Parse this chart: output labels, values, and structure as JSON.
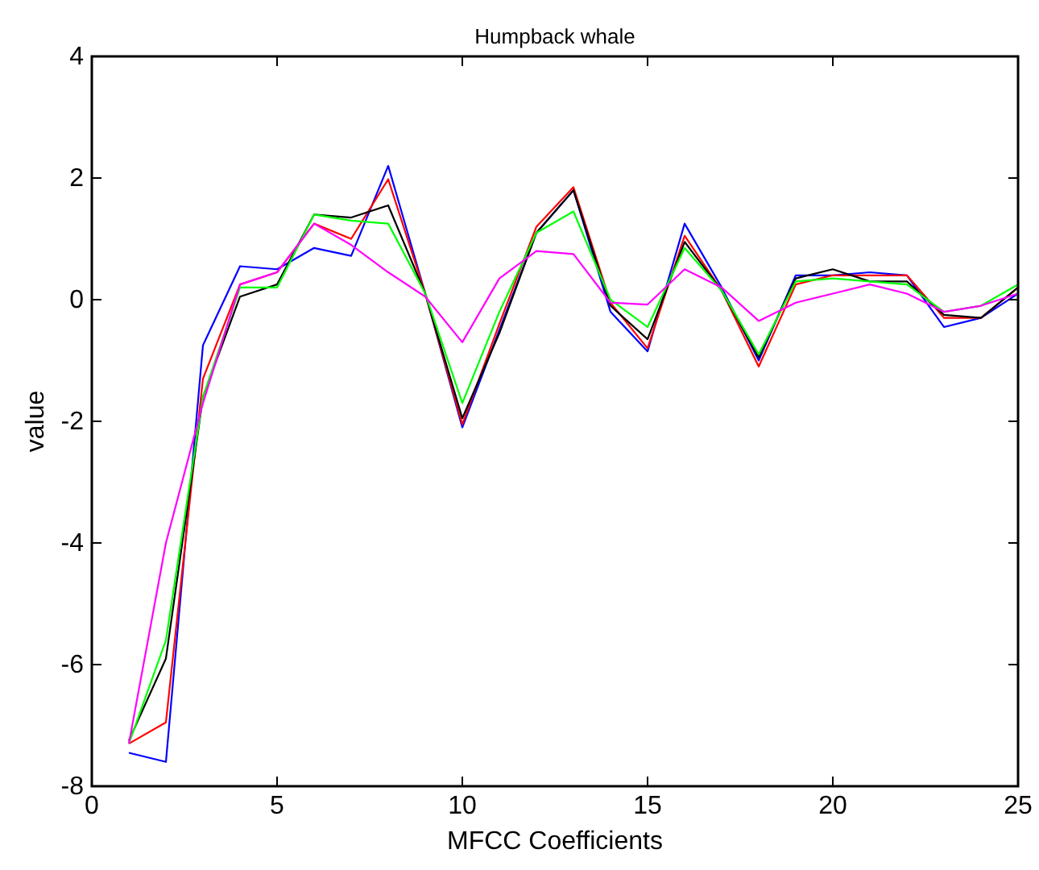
{
  "chart_data": {
    "type": "line",
    "title": "Humpback whale",
    "xlabel": "MFCC Coefficients",
    "ylabel": "value",
    "x": [
      1,
      2,
      3,
      4,
      5,
      6,
      7,
      8,
      9,
      10,
      11,
      12,
      13,
      14,
      15,
      16,
      17,
      18,
      19,
      20,
      21,
      22,
      23,
      24,
      25
    ],
    "xlim": [
      0,
      25
    ],
    "xticks": [
      0,
      5,
      10,
      15,
      20,
      25
    ],
    "ylim": [
      -8,
      4
    ],
    "yticks": [
      -8,
      -6,
      -4,
      -2,
      0,
      2,
      4
    ],
    "grid": false,
    "marker": "none",
    "line_style": "solid",
    "series": [
      {
        "color": "#0000ff",
        "values": [
          -7.45,
          -7.6,
          -0.75,
          0.55,
          0.5,
          0.85,
          0.72,
          2.2,
          0.1,
          -2.1,
          -0.5,
          1.1,
          1.8,
          -0.2,
          -0.85,
          1.25,
          0.2,
          -1.0,
          0.4,
          0.4,
          0.45,
          0.4,
          -0.45,
          -0.3,
          0.1
        ]
      },
      {
        "color": "#ff0000",
        "values": [
          -7.3,
          -6.95,
          -1.3,
          0.25,
          0.45,
          1.25,
          1.0,
          1.98,
          0.1,
          -2.05,
          -0.4,
          1.2,
          1.85,
          -0.05,
          -0.8,
          1.05,
          0.15,
          -1.1,
          0.25,
          0.4,
          0.4,
          0.4,
          -0.3,
          -0.3,
          0.2
        ]
      },
      {
        "color": "#000000",
        "values": [
          -7.25,
          -5.9,
          -1.6,
          0.05,
          0.25,
          1.4,
          1.35,
          1.55,
          0.1,
          -1.95,
          -0.55,
          1.1,
          1.8,
          -0.1,
          -0.65,
          0.95,
          0.15,
          -0.95,
          0.35,
          0.5,
          0.3,
          0.3,
          -0.25,
          -0.3,
          0.2
        ]
      },
      {
        "color": "#00ff00",
        "values": [
          -7.3,
          -5.6,
          -1.6,
          0.2,
          0.2,
          1.4,
          1.3,
          1.25,
          0.1,
          -1.7,
          -0.2,
          1.1,
          1.45,
          0.0,
          -0.45,
          0.85,
          0.15,
          -0.9,
          0.3,
          0.35,
          0.3,
          0.25,
          -0.2,
          -0.1,
          0.25
        ]
      },
      {
        "color": "#ff00ff",
        "values": [
          -7.3,
          -4.0,
          -1.7,
          0.25,
          0.45,
          1.25,
          0.9,
          0.45,
          0.05,
          -0.7,
          0.35,
          0.8,
          0.75,
          -0.05,
          -0.08,
          0.5,
          0.2,
          -0.35,
          -0.05,
          0.1,
          0.25,
          0.1,
          -0.2,
          -0.1,
          0.1
        ]
      }
    ]
  }
}
